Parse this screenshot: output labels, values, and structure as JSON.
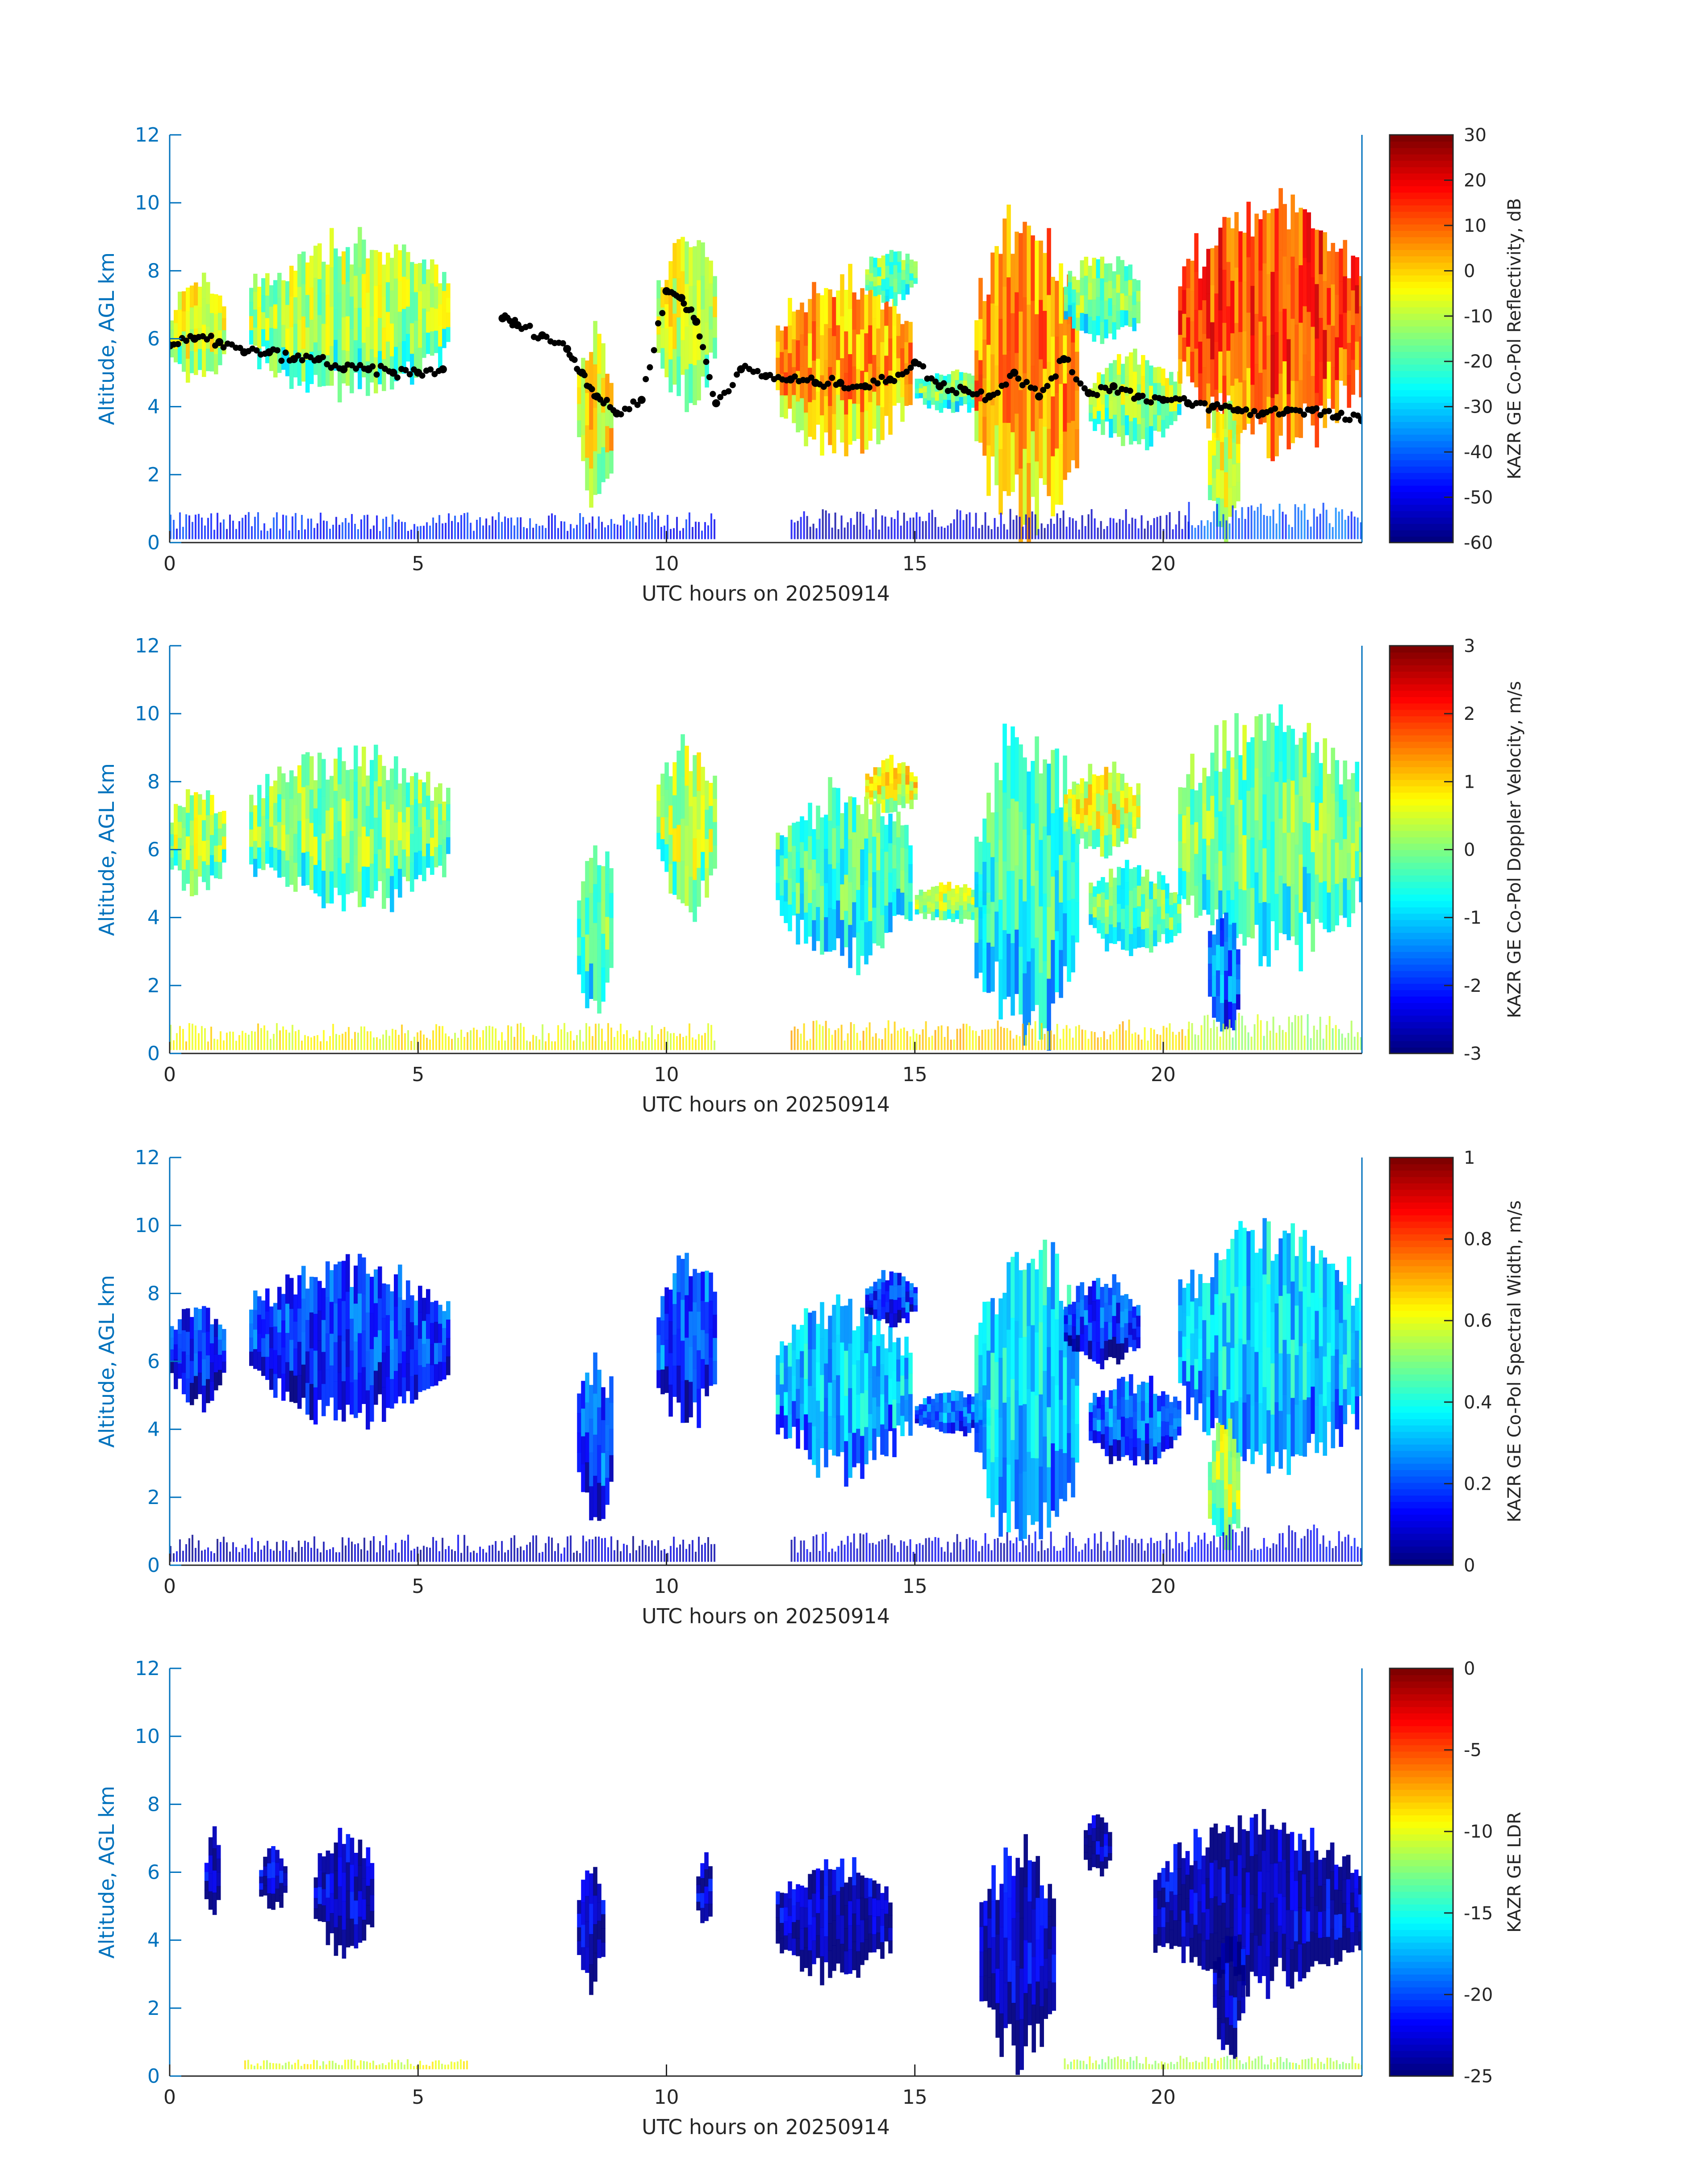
{
  "chart_data": [
    {
      "type": "heatmap",
      "title": "",
      "xlabel": "UTC hours on 20250914",
      "ylabel": "Altitude, AGL km",
      "xlim": [
        0,
        24
      ],
      "ylim": [
        0,
        12
      ],
      "xticks": [
        "0",
        "5",
        "10",
        "15",
        "20"
      ],
      "yticks": [
        "0",
        "2",
        "4",
        "6",
        "8",
        "10",
        "12"
      ],
      "colorbar": {
        "label": "KAZR GE Co-Pol Reflectivity, dB",
        "range": [
          -60,
          30
        ],
        "ticks": [
          "-60",
          "-50",
          "-40",
          "-30",
          "-20",
          "-10",
          "0",
          "10",
          "20",
          "30"
        ],
        "colormap": "jet"
      },
      "echo_regions": [
        {
          "x": [
            0.0,
            1.1
          ],
          "y": [
            4.6,
            7.8
          ],
          "level": 0.55
        },
        {
          "x": [
            1.6,
            5.6
          ],
          "y": [
            4.2,
            9.0
          ],
          "level": 0.5
        },
        {
          "x": [
            8.2,
            8.9
          ],
          "y": [
            1.0,
            6.4
          ],
          "level": 0.6
        },
        {
          "x": [
            9.8,
            11.0
          ],
          "y": [
            4.0,
            9.2
          ],
          "level": 0.55
        },
        {
          "x": [
            12.2,
            14.9
          ],
          "y": [
            2.5,
            7.9
          ],
          "level": 0.68
        },
        {
          "x": [
            14.0,
            15.0
          ],
          "y": [
            7.0,
            8.7
          ],
          "level": 0.45
        },
        {
          "x": [
            15.0,
            16.5
          ],
          "y": [
            3.8,
            5.1
          ],
          "level": 0.45
        },
        {
          "x": [
            16.2,
            18.3
          ],
          "y": [
            0.2,
            9.8
          ],
          "level": 0.7
        },
        {
          "x": [
            18.0,
            19.5
          ],
          "y": [
            5.8,
            8.5
          ],
          "level": 0.45
        },
        {
          "x": [
            18.5,
            20.3
          ],
          "y": [
            2.8,
            5.6
          ],
          "level": 0.5
        },
        {
          "x": [
            20.3,
            24.0
          ],
          "y": [
            2.6,
            10.2
          ],
          "level": 0.78
        },
        {
          "x": [
            20.9,
            21.5
          ],
          "y": [
            0.2,
            4.5
          ],
          "level": 0.55
        }
      ],
      "surface_clutter": [
        {
          "x": [
            0.0,
            11.0
          ],
          "y": [
            0.1,
            0.9
          ],
          "level": 0.15
        },
        {
          "x": [
            12.5,
            20.5
          ],
          "y": [
            0.1,
            1.0
          ],
          "level": 0.08
        },
        {
          "x": [
            20.5,
            24.0
          ],
          "y": [
            0.1,
            1.2
          ],
          "level": 0.2
        }
      ],
      "cloud_base_series": {
        "x": [
          0.0,
          0.5,
          1.0,
          1.5,
          2.0,
          2.5,
          3.0,
          3.5,
          4.0,
          4.5,
          5.0,
          5.5,
          6.7,
          7.0,
          7.5,
          8.0,
          8.3,
          8.6,
          9.0,
          9.5,
          10.0,
          10.3,
          10.6,
          11.0,
          11.5,
          12.0,
          12.5,
          13.0,
          13.5,
          14.0,
          14.5,
          15.0,
          15.5,
          16.0,
          16.5,
          17.0,
          17.5,
          18.0,
          18.5,
          19.0,
          19.5,
          20.0,
          20.5,
          21.0,
          21.5,
          22.0,
          22.5,
          23.0,
          23.5,
          24.0
        ],
        "y": [
          5.8,
          6.0,
          5.9,
          5.6,
          5.6,
          5.4,
          5.4,
          5.1,
          5.1,
          5.0,
          5.0,
          5.1,
          6.6,
          6.4,
          6.1,
          5.7,
          5.0,
          4.3,
          3.8,
          4.2,
          7.4,
          7.2,
          6.5,
          4.1,
          5.1,
          4.9,
          4.8,
          4.7,
          4.7,
          4.6,
          4.8,
          5.3,
          4.6,
          4.5,
          4.3,
          5.0,
          4.3,
          5.4,
          4.4,
          4.6,
          4.3,
          4.2,
          4.1,
          4.0,
          3.9,
          3.8,
          3.9,
          3.9,
          3.7,
          3.6
        ]
      }
    },
    {
      "type": "heatmap",
      "title": "",
      "xlabel": "UTC hours on 20250914",
      "ylabel": "Altitude, AGL km",
      "xlim": [
        0,
        24
      ],
      "ylim": [
        0,
        12
      ],
      "xticks": [
        "0",
        "5",
        "10",
        "15",
        "20"
      ],
      "yticks": [
        "0",
        "2",
        "4",
        "6",
        "8",
        "10",
        "12"
      ],
      "colorbar": {
        "label": "KAZR GE Co-Pol Doppler Velocity, m/s",
        "range": [
          -3,
          3
        ],
        "ticks": [
          "-3",
          "-2",
          "-1",
          "0",
          "1",
          "2",
          "3"
        ],
        "colormap": "jet"
      },
      "echo_regions": [
        {
          "x": [
            0.0,
            1.1
          ],
          "y": [
            4.6,
            7.8
          ],
          "level": 0.5
        },
        {
          "x": [
            1.6,
            5.6
          ],
          "y": [
            4.2,
            9.0
          ],
          "level": 0.47
        },
        {
          "x": [
            8.2,
            8.9
          ],
          "y": [
            1.0,
            6.4
          ],
          "level": 0.42
        },
        {
          "x": [
            9.8,
            11.0
          ],
          "y": [
            4.0,
            9.2
          ],
          "level": 0.52
        },
        {
          "x": [
            12.2,
            14.9
          ],
          "y": [
            2.5,
            7.9
          ],
          "level": 0.4
        },
        {
          "x": [
            14.0,
            15.0
          ],
          "y": [
            7.0,
            8.7
          ],
          "level": 0.58
        },
        {
          "x": [
            15.0,
            16.5
          ],
          "y": [
            3.8,
            5.1
          ],
          "level": 0.5
        },
        {
          "x": [
            16.2,
            18.3
          ],
          "y": [
            0.2,
            9.8
          ],
          "level": 0.38
        },
        {
          "x": [
            18.0,
            19.5
          ],
          "y": [
            5.8,
            8.5
          ],
          "level": 0.56
        },
        {
          "x": [
            18.5,
            20.3
          ],
          "y": [
            2.8,
            5.6
          ],
          "level": 0.42
        },
        {
          "x": [
            20.3,
            24.0
          ],
          "y": [
            2.6,
            10.2
          ],
          "level": 0.45
        },
        {
          "x": [
            20.9,
            21.5
          ],
          "y": [
            0.2,
            4.5
          ],
          "level": 0.2
        }
      ],
      "surface_clutter": [
        {
          "x": [
            0.0,
            11.0
          ],
          "y": [
            0.1,
            0.9
          ],
          "level": 0.62
        },
        {
          "x": [
            12.5,
            20.5
          ],
          "y": [
            0.1,
            1.0
          ],
          "level": 0.66
        },
        {
          "x": [
            20.5,
            24.0
          ],
          "y": [
            0.1,
            1.2
          ],
          "level": 0.55
        }
      ]
    },
    {
      "type": "heatmap",
      "title": "",
      "xlabel": "UTC hours on 20250914",
      "ylabel": "Altitude, AGL km",
      "xlim": [
        0,
        24
      ],
      "ylim": [
        0,
        12
      ],
      "xticks": [
        "0",
        "5",
        "10",
        "15",
        "20"
      ],
      "yticks": [
        "0",
        "2",
        "4",
        "6",
        "8",
        "10",
        "12"
      ],
      "colorbar": {
        "label": "KAZR GE Co-Pol Spectral Width, m/s",
        "range": [
          0,
          1
        ],
        "ticks": [
          "0",
          "0.2",
          "0.4",
          "0.6",
          "0.8",
          "1"
        ],
        "colormap": "jet"
      },
      "echo_regions": [
        {
          "x": [
            0.0,
            1.1
          ],
          "y": [
            4.6,
            7.8
          ],
          "level": 0.12
        },
        {
          "x": [
            1.6,
            5.6
          ],
          "y": [
            4.2,
            9.0
          ],
          "level": 0.13
        },
        {
          "x": [
            8.2,
            8.9
          ],
          "y": [
            1.0,
            6.4
          ],
          "level": 0.15
        },
        {
          "x": [
            9.8,
            11.0
          ],
          "y": [
            4.0,
            9.2
          ],
          "level": 0.16
        },
        {
          "x": [
            12.2,
            14.9
          ],
          "y": [
            2.5,
            7.9
          ],
          "level": 0.28
        },
        {
          "x": [
            14.0,
            15.0
          ],
          "y": [
            7.0,
            8.7
          ],
          "level": 0.13
        },
        {
          "x": [
            15.0,
            16.5
          ],
          "y": [
            3.8,
            5.1
          ],
          "level": 0.2
        },
        {
          "x": [
            16.2,
            18.3
          ],
          "y": [
            0.2,
            9.8
          ],
          "level": 0.3
        },
        {
          "x": [
            18.0,
            19.5
          ],
          "y": [
            5.8,
            8.5
          ],
          "level": 0.14
        },
        {
          "x": [
            18.5,
            20.3
          ],
          "y": [
            2.8,
            5.6
          ],
          "level": 0.18
        },
        {
          "x": [
            20.3,
            24.0
          ],
          "y": [
            2.6,
            10.2
          ],
          "level": 0.3
        },
        {
          "x": [
            20.9,
            21.5
          ],
          "y": [
            0.2,
            4.5
          ],
          "level": 0.5
        }
      ],
      "surface_clutter": [
        {
          "x": [
            0.0,
            11.0
          ],
          "y": [
            0.1,
            0.9
          ],
          "level": 0.06
        },
        {
          "x": [
            12.5,
            20.5
          ],
          "y": [
            0.1,
            1.0
          ],
          "level": 0.08
        },
        {
          "x": [
            20.5,
            24.0
          ],
          "y": [
            0.1,
            1.2
          ],
          "level": 0.1
        }
      ]
    },
    {
      "type": "heatmap",
      "title": "",
      "xlabel": "UTC hours on 20250914",
      "ylabel": "Altitude, AGL km",
      "xlim": [
        0,
        24
      ],
      "ylim": [
        0,
        12
      ],
      "xticks": [
        "0",
        "5",
        "10",
        "15",
        "20"
      ],
      "yticks": [
        "0",
        "2",
        "4",
        "6",
        "8",
        "10",
        "12"
      ],
      "colorbar": {
        "label": "KAZR GE LDR",
        "range": [
          -25,
          0
        ],
        "ticks": [
          "-25",
          "-20",
          "-15",
          "-10",
          "-5",
          "0"
        ],
        "colormap": "jet"
      },
      "echo_regions": [
        {
          "x": [
            0.7,
            1.0
          ],
          "y": [
            4.5,
            7.2
          ],
          "level": 0.02
        },
        {
          "x": [
            1.8,
            2.3
          ],
          "y": [
            4.8,
            6.8
          ],
          "level": 0.02
        },
        {
          "x": [
            2.9,
            4.1
          ],
          "y": [
            3.6,
            7.2
          ],
          "level": 0.02
        },
        {
          "x": [
            8.2,
            8.7
          ],
          "y": [
            2.5,
            6.2
          ],
          "level": 0.02
        },
        {
          "x": [
            10.6,
            10.9
          ],
          "y": [
            4.2,
            6.6
          ],
          "level": 0.02
        },
        {
          "x": [
            12.2,
            14.5
          ],
          "y": [
            2.8,
            6.4
          ],
          "level": 0.02
        },
        {
          "x": [
            16.3,
            17.8
          ],
          "y": [
            0.3,
            6.9
          ],
          "level": 0.02
        },
        {
          "x": [
            18.4,
            18.9
          ],
          "y": [
            5.8,
            7.8
          ],
          "level": 0.02
        },
        {
          "x": [
            19.8,
            24.0
          ],
          "y": [
            2.5,
            7.6
          ],
          "level": 0.02
        },
        {
          "x": [
            21.0,
            21.6
          ],
          "y": [
            0.5,
            4.5
          ],
          "level": 0.02
        }
      ],
      "surface_clutter": [
        {
          "x": [
            1.5,
            6.0
          ],
          "y": [
            0.2,
            0.5
          ],
          "level": 0.6
        },
        {
          "x": [
            18.0,
            24.0
          ],
          "y": [
            0.2,
            0.6
          ],
          "level": 0.55
        }
      ]
    }
  ]
}
